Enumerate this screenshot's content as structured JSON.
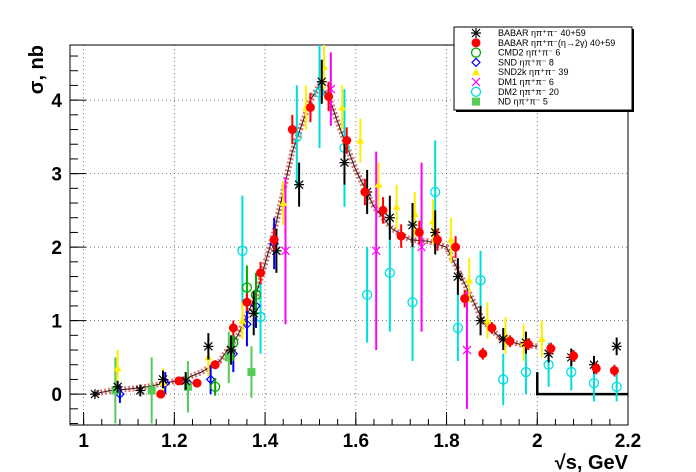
{
  "chart_data": {
    "type": "scatter",
    "title": "",
    "xlabel": "√s, GeV",
    "ylabel": "σ, nb",
    "xlim": [
      0.97,
      2.2
    ],
    "ylim": [
      -0.42,
      4.75
    ],
    "x_ticks": [
      1,
      1.2,
      1.4,
      1.6,
      1.8,
      2,
      2.2
    ],
    "x_tick_labels": [
      "1",
      "1.2",
      "1.4",
      "1.6",
      "1.8",
      "2",
      "2.2"
    ],
    "y_ticks": [
      0,
      1,
      2,
      3,
      4
    ],
    "y_tick_labels": [
      "0",
      "1",
      "2",
      "3",
      "4"
    ],
    "grid": true,
    "legend_position": "top-right",
    "series": [
      {
        "name": "BABAR ηπ⁺π⁻ 40+59",
        "color": "#000000",
        "marker": "star",
        "points": [
          [
            1.025,
            0.0,
            0.03
          ],
          [
            1.075,
            0.1,
            0.08
          ],
          [
            1.125,
            0.05,
            0.08
          ],
          [
            1.175,
            0.2,
            0.12
          ],
          [
            1.225,
            0.18,
            0.12
          ],
          [
            1.275,
            0.65,
            0.18
          ],
          [
            1.325,
            0.6,
            0.2
          ],
          [
            1.375,
            1.1,
            0.3
          ],
          [
            1.425,
            1.95,
            0.3
          ],
          [
            1.475,
            2.85,
            0.3
          ],
          [
            1.525,
            4.25,
            0.3
          ],
          [
            1.575,
            3.15,
            0.3
          ],
          [
            1.625,
            2.75,
            0.3
          ],
          [
            1.675,
            2.4,
            0.3
          ],
          [
            1.725,
            2.3,
            0.3
          ],
          [
            1.775,
            2.2,
            0.3
          ],
          [
            1.825,
            1.6,
            0.25
          ],
          [
            1.875,
            1.0,
            0.2
          ],
          [
            1.925,
            0.75,
            0.15
          ],
          [
            1.975,
            0.7,
            0.15
          ],
          [
            2.025,
            0.55,
            0.12
          ],
          [
            2.075,
            0.5,
            0.12
          ],
          [
            2.125,
            0.4,
            0.12
          ],
          [
            2.175,
            0.65,
            0.12
          ]
        ]
      },
      {
        "name": "BABAR ηπ⁺π⁻(η→2γ) 40+59",
        "color": "#ff0000",
        "marker": "circle",
        "points": [
          [
            1.17,
            0.0,
            0.05
          ],
          [
            1.21,
            0.18,
            0.05
          ],
          [
            1.25,
            0.15,
            0.05
          ],
          [
            1.29,
            0.4,
            0.06
          ],
          [
            1.33,
            0.9,
            0.1
          ],
          [
            1.36,
            1.25,
            0.12
          ],
          [
            1.39,
            1.65,
            0.15
          ],
          [
            1.42,
            2.1,
            0.15
          ],
          [
            1.46,
            3.6,
            0.2
          ],
          [
            1.5,
            3.9,
            0.2
          ],
          [
            1.54,
            4.05,
            0.2
          ],
          [
            1.58,
            3.45,
            0.18
          ],
          [
            1.62,
            2.75,
            0.18
          ],
          [
            1.66,
            2.5,
            0.18
          ],
          [
            1.7,
            2.15,
            0.16
          ],
          [
            1.74,
            2.2,
            0.16
          ],
          [
            1.78,
            2.1,
            0.15
          ],
          [
            1.82,
            2.0,
            0.15
          ],
          [
            1.84,
            1.3,
            0.12
          ],
          [
            1.88,
            0.55,
            0.08
          ],
          [
            1.9,
            0.9,
            0.08
          ],
          [
            1.94,
            0.72,
            0.08
          ],
          [
            1.98,
            0.68,
            0.08
          ],
          [
            2.03,
            0.62,
            0.08
          ],
          [
            2.08,
            0.52,
            0.08
          ],
          [
            2.13,
            0.35,
            0.08
          ],
          [
            2.17,
            0.32,
            0.08
          ]
        ]
      },
      {
        "name": "CMD2 ηπ⁺π⁻ 6",
        "color": "#00aa00",
        "marker": "circle-open",
        "points": [
          [
            1.29,
            0.1,
            0.12
          ],
          [
            1.33,
            0.7,
            0.25
          ],
          [
            1.36,
            1.45,
            0.3
          ],
          [
            1.38,
            1.35,
            0.3
          ]
        ]
      },
      {
        "name": "SND ηπ⁺π⁻ 8",
        "color": "#0000ff",
        "marker": "diamond-open",
        "points": [
          [
            1.08,
            0.0,
            0.12
          ],
          [
            1.18,
            0.15,
            0.15
          ],
          [
            1.23,
            0.15,
            0.15
          ],
          [
            1.28,
            0.2,
            0.2
          ],
          [
            1.33,
            0.55,
            0.25
          ],
          [
            1.36,
            0.95,
            0.3
          ],
          [
            1.38,
            1.2,
            0.3
          ],
          [
            1.42,
            2.05,
            0.35
          ]
        ]
      },
      {
        "name": "SND2k ηπ⁺π⁻ 39",
        "color": "#ffee00",
        "marker": "triangle",
        "points": [
          [
            1.075,
            0.35,
            0.25
          ],
          [
            1.175,
            0.15,
            0.2
          ],
          [
            1.275,
            0.5,
            0.25
          ],
          [
            1.35,
            1.0,
            0.25
          ],
          [
            1.44,
            2.6,
            0.3
          ],
          [
            1.49,
            3.9,
            0.3
          ],
          [
            1.53,
            4.45,
            0.3
          ],
          [
            1.57,
            3.9,
            0.3
          ],
          [
            1.61,
            3.45,
            0.3
          ],
          [
            1.65,
            2.85,
            0.3
          ],
          [
            1.69,
            2.55,
            0.3
          ],
          [
            1.73,
            2.45,
            0.3
          ],
          [
            1.77,
            2.35,
            0.3
          ],
          [
            1.81,
            2.1,
            0.3
          ],
          [
            1.85,
            1.55,
            0.3
          ],
          [
            1.89,
            1.0,
            0.25
          ],
          [
            1.93,
            0.8,
            0.25
          ],
          [
            1.97,
            0.7,
            0.25
          ],
          [
            2.01,
            0.75,
            0.25
          ]
        ]
      },
      {
        "name": "DM1 ηπ⁺π⁻ 6",
        "color": "#ff00ff",
        "marker": "x",
        "points": [
          [
            1.445,
            1.95,
            1.0
          ],
          [
            1.545,
            4.15,
            0.5
          ],
          [
            1.645,
            1.95,
            1.35
          ],
          [
            1.745,
            2.0,
            1.15
          ],
          [
            1.845,
            0.6,
            0.8
          ]
        ]
      },
      {
        "name": "DM2 ηπ⁺π⁻ 20",
        "color": "#00dddd",
        "marker": "circle-open",
        "points": [
          [
            1.35,
            1.95,
            0.75
          ],
          [
            1.39,
            1.05,
            0.5
          ],
          [
            1.47,
            3.5,
            0.7
          ],
          [
            1.52,
            4.1,
            0.75
          ],
          [
            1.575,
            3.35,
            0.8
          ],
          [
            1.625,
            1.35,
            0.65
          ],
          [
            1.675,
            1.65,
            0.8
          ],
          [
            1.725,
            1.25,
            0.8
          ],
          [
            1.775,
            2.75,
            0.7
          ],
          [
            1.825,
            0.9,
            0.45
          ],
          [
            1.875,
            1.55,
            0.4
          ],
          [
            1.925,
            0.2,
            0.35
          ],
          [
            1.975,
            0.3,
            0.3
          ],
          [
            2.025,
            0.4,
            0.3
          ],
          [
            2.075,
            0.3,
            0.25
          ],
          [
            2.125,
            0.15,
            0.25
          ],
          [
            2.175,
            0.1,
            0.2
          ]
        ]
      },
      {
        "name": "ND ηπ⁺π⁻ 5",
        "color": "#55cc55",
        "marker": "square",
        "points": [
          [
            1.07,
            0.05,
            0.45
          ],
          [
            1.15,
            0.05,
            0.45
          ],
          [
            1.23,
            0.1,
            0.35
          ],
          [
            1.32,
            0.5,
            0.35
          ],
          [
            1.37,
            0.3,
            0.35
          ]
        ]
      }
    ],
    "fit_curve": {
      "color": "#cc0000",
      "x": [
        1.02,
        1.06,
        1.1,
        1.14,
        1.18,
        1.22,
        1.26,
        1.3,
        1.34,
        1.38,
        1.42,
        1.46,
        1.5,
        1.52,
        1.54,
        1.56,
        1.6,
        1.64,
        1.68,
        1.72,
        1.76,
        1.8,
        1.84,
        1.88,
        1.92,
        1.96,
        2.0
      ],
      "y": [
        0.0,
        0.05,
        0.07,
        0.1,
        0.15,
        0.2,
        0.3,
        0.45,
        0.8,
        1.35,
        2.2,
        3.3,
        4.0,
        4.2,
        4.05,
        3.7,
        3.05,
        2.55,
        2.25,
        2.1,
        2.08,
        2.0,
        1.5,
        1.0,
        0.75,
        0.68,
        0.65
      ]
    },
    "step_line": {
      "color": "#000000",
      "x": [
        2.0,
        2.2
      ],
      "y": [
        0.0,
        0.0
      ]
    }
  }
}
